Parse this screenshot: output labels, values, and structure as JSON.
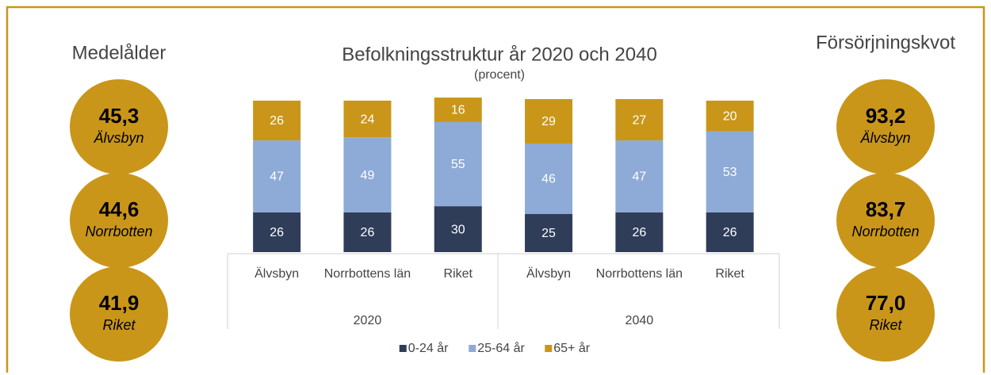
{
  "panels": [
    {
      "title": "Medelålder",
      "items": [
        {
          "value": "45,3",
          "label": "Älvsbyn"
        },
        {
          "value": "44,6",
          "label": "Norrbotten"
        },
        {
          "value": "41,9",
          "label": "Riket"
        }
      ]
    },
    {
      "title": "Försörjningskvot",
      "items": [
        {
          "value": "93,2",
          "label": "Älvsbyn"
        },
        {
          "value": "83,7",
          "label": "Norrbotten"
        },
        {
          "value": "77,0",
          "label": "Riket"
        }
      ]
    }
  ],
  "chart_data": {
    "type": "bar",
    "stacked": true,
    "title": "Befolkningsstruktur år 2020 och 2040",
    "subtitle": "(procent)",
    "categories": [
      "Älvsbyn",
      "Norrbottens län",
      "Riket",
      "Älvsbyn",
      "Norrbottens län",
      "Riket"
    ],
    "groups": [
      "2020",
      "2040"
    ],
    "series": [
      {
        "name": "0-24 år",
        "color": "#2f3d59",
        "values": [
          26,
          26,
          30,
          25,
          26,
          26
        ]
      },
      {
        "name": "25-64 år",
        "color": "#8eaad6",
        "values": [
          47,
          49,
          55,
          46,
          47,
          53
        ]
      },
      {
        "name": "65+ år",
        "color": "#c9961a",
        "values": [
          26,
          24,
          16,
          29,
          27,
          20
        ]
      }
    ],
    "legend": "bottom"
  }
}
